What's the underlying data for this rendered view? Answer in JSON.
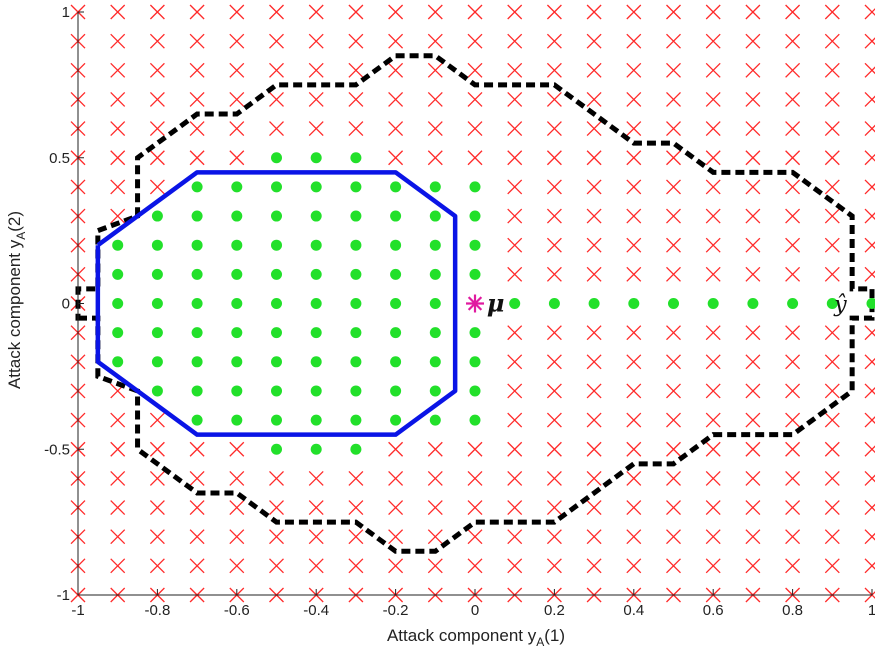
{
  "chart_data": {
    "type": "scatter",
    "xlabel_main": "Attack component y",
    "xlabel_sub": "A",
    "xlabel_arg": "(1)",
    "ylabel_main": "Attack component y",
    "ylabel_sub": "A",
    "ylabel_arg": "(2)",
    "xlim": [
      -1,
      1
    ],
    "ylim": [
      -1,
      1
    ],
    "x_ticks": [
      -1,
      -0.8,
      -0.6,
      -0.4,
      -0.2,
      0,
      0.2,
      0.4,
      0.6,
      0.8,
      1
    ],
    "x_tick_labels": [
      "-1",
      "-0.8",
      "-0.6",
      "-0.4",
      "-0.2",
      "0",
      "0.2",
      "0.4",
      "0.6",
      "0.8",
      "1"
    ],
    "y_ticks": [
      1,
      0.5,
      0,
      -0.5,
      -1
    ],
    "y_tick_labels": [
      "1",
      "0.5",
      "0",
      "-0.5",
      "-1"
    ],
    "grid": false,
    "grid_step": 0.1,
    "colors": {
      "rejected": "#ff2a2a",
      "accepted": "#22e02a",
      "polytope": "#0a14e6",
      "boundary": "#000000",
      "mu": "#e01aa0"
    },
    "series": [
      {
        "marker": "x",
        "rule": "all grid points not in accepted set"
      },
      {
        "marker": "dot",
        "points": [
          [
            -0.9,
            0.2
          ],
          [
            -0.9,
            0.1
          ],
          [
            -0.9,
            0
          ],
          [
            -0.9,
            -0.1
          ],
          [
            -0.9,
            -0.2
          ],
          [
            -0.8,
            0.3
          ],
          [
            -0.8,
            0.2
          ],
          [
            -0.8,
            0.1
          ],
          [
            -0.8,
            0
          ],
          [
            -0.8,
            -0.1
          ],
          [
            -0.8,
            -0.2
          ],
          [
            -0.8,
            -0.3
          ],
          [
            -0.7,
            0.4
          ],
          [
            -0.7,
            0.3
          ],
          [
            -0.7,
            0.2
          ],
          [
            -0.7,
            0.1
          ],
          [
            -0.7,
            0
          ],
          [
            -0.7,
            -0.1
          ],
          [
            -0.7,
            -0.2
          ],
          [
            -0.7,
            -0.3
          ],
          [
            -0.7,
            -0.4
          ],
          [
            -0.6,
            0.4
          ],
          [
            -0.6,
            0.3
          ],
          [
            -0.6,
            0.2
          ],
          [
            -0.6,
            0.1
          ],
          [
            -0.6,
            0
          ],
          [
            -0.6,
            -0.1
          ],
          [
            -0.6,
            -0.2
          ],
          [
            -0.6,
            -0.3
          ],
          [
            -0.6,
            -0.4
          ],
          [
            -0.5,
            0.5
          ],
          [
            -0.5,
            0.4
          ],
          [
            -0.5,
            0.3
          ],
          [
            -0.5,
            0.2
          ],
          [
            -0.5,
            0.1
          ],
          [
            -0.5,
            0
          ],
          [
            -0.5,
            -0.1
          ],
          [
            -0.5,
            -0.2
          ],
          [
            -0.5,
            -0.3
          ],
          [
            -0.5,
            -0.4
          ],
          [
            -0.5,
            -0.5
          ],
          [
            -0.4,
            0.5
          ],
          [
            -0.4,
            0.4
          ],
          [
            -0.4,
            0.3
          ],
          [
            -0.4,
            0.2
          ],
          [
            -0.4,
            0.1
          ],
          [
            -0.4,
            0
          ],
          [
            -0.4,
            -0.1
          ],
          [
            -0.4,
            -0.2
          ],
          [
            -0.4,
            -0.3
          ],
          [
            -0.4,
            -0.4
          ],
          [
            -0.4,
            -0.5
          ],
          [
            -0.3,
            0.5
          ],
          [
            -0.3,
            0.4
          ],
          [
            -0.3,
            0.3
          ],
          [
            -0.3,
            0.2
          ],
          [
            -0.3,
            0.1
          ],
          [
            -0.3,
            0
          ],
          [
            -0.3,
            -0.1
          ],
          [
            -0.3,
            -0.2
          ],
          [
            -0.3,
            -0.3
          ],
          [
            -0.3,
            -0.4
          ],
          [
            -0.3,
            -0.5
          ],
          [
            -0.2,
            0.4
          ],
          [
            -0.2,
            0.3
          ],
          [
            -0.2,
            0.2
          ],
          [
            -0.2,
            0.1
          ],
          [
            -0.2,
            0
          ],
          [
            -0.2,
            -0.1
          ],
          [
            -0.2,
            -0.2
          ],
          [
            -0.2,
            -0.3
          ],
          [
            -0.2,
            -0.4
          ],
          [
            -0.1,
            0.4
          ],
          [
            -0.1,
            0.3
          ],
          [
            -0.1,
            0.2
          ],
          [
            -0.1,
            0.1
          ],
          [
            -0.1,
            0
          ],
          [
            -0.1,
            -0.1
          ],
          [
            -0.1,
            -0.2
          ],
          [
            -0.1,
            -0.3
          ],
          [
            -0.1,
            -0.4
          ],
          [
            0,
            0.4
          ],
          [
            0,
            0.3
          ],
          [
            0,
            0.2
          ],
          [
            0,
            0.1
          ],
          [
            0,
            -0.1
          ],
          [
            0,
            -0.2
          ],
          [
            0,
            -0.3
          ],
          [
            0,
            -0.4
          ],
          [
            0.1,
            0
          ],
          [
            0.2,
            0
          ],
          [
            0.3,
            0
          ],
          [
            0.4,
            0
          ],
          [
            0.5,
            0
          ],
          [
            0.6,
            0
          ],
          [
            0.7,
            0
          ],
          [
            0.8,
            0
          ],
          [
            0.9,
            0
          ],
          [
            1,
            0
          ]
        ]
      },
      {
        "marker": "line-solid",
        "points": [
          [
            -0.95,
            0.2
          ],
          [
            -0.7,
            0.45
          ],
          [
            -0.2,
            0.45
          ],
          [
            -0.05,
            0.3
          ],
          [
            -0.05,
            -0.3
          ],
          [
            -0.2,
            -0.45
          ],
          [
            -0.7,
            -0.45
          ],
          [
            -0.95,
            -0.2
          ],
          [
            -0.95,
            0.2
          ]
        ]
      },
      {
        "marker": "line-dashed",
        "points": [
          [
            -1,
            -0.05
          ],
          [
            -0.95,
            -0.05
          ],
          [
            -0.95,
            -0.25
          ],
          [
            -0.85,
            -0.3
          ],
          [
            -0.85,
            -0.5
          ],
          [
            -0.7,
            -0.65
          ],
          [
            -0.6,
            -0.65
          ],
          [
            -0.5,
            -0.75
          ],
          [
            -0.4,
            -0.75
          ],
          [
            -0.3,
            -0.75
          ],
          [
            -0.2,
            -0.85
          ],
          [
            -0.1,
            -0.85
          ],
          [
            0,
            -0.75
          ],
          [
            0.1,
            -0.75
          ],
          [
            0.2,
            -0.75
          ],
          [
            0.3,
            -0.65
          ],
          [
            0.4,
            -0.55
          ],
          [
            0.5,
            -0.55
          ],
          [
            0.6,
            -0.45
          ],
          [
            0.7,
            -0.45
          ],
          [
            0.8,
            -0.45
          ],
          [
            0.9,
            -0.35
          ],
          [
            0.95,
            -0.3
          ],
          [
            0.95,
            -0.05
          ],
          [
            1,
            -0.05
          ],
          [
            1,
            0.05
          ],
          [
            0.95,
            0.05
          ],
          [
            0.95,
            0.3
          ],
          [
            0.9,
            0.35
          ],
          [
            0.8,
            0.45
          ],
          [
            0.7,
            0.45
          ],
          [
            0.6,
            0.45
          ],
          [
            0.5,
            0.55
          ],
          [
            0.4,
            0.55
          ],
          [
            0.3,
            0.65
          ],
          [
            0.2,
            0.75
          ],
          [
            0.1,
            0.75
          ],
          [
            0,
            0.75
          ],
          [
            -0.1,
            0.85
          ],
          [
            -0.2,
            0.85
          ],
          [
            -0.3,
            0.75
          ],
          [
            -0.4,
            0.75
          ],
          [
            -0.5,
            0.75
          ],
          [
            -0.6,
            0.65
          ],
          [
            -0.7,
            0.65
          ],
          [
            -0.85,
            0.5
          ],
          [
            -0.85,
            0.3
          ],
          [
            -0.95,
            0.25
          ],
          [
            -0.95,
            0.05
          ],
          [
            -1,
            0.05
          ]
        ]
      },
      {
        "marker": "star",
        "points": [
          [
            0,
            0
          ]
        ]
      }
    ],
    "annotations": [
      {
        "text": "μ",
        "x": 0.03,
        "y": 0,
        "class": "annot-mu"
      },
      {
        "text": "ŷ",
        "x": 0.905,
        "y": 0,
        "class": "annot-yhat"
      }
    ]
  }
}
